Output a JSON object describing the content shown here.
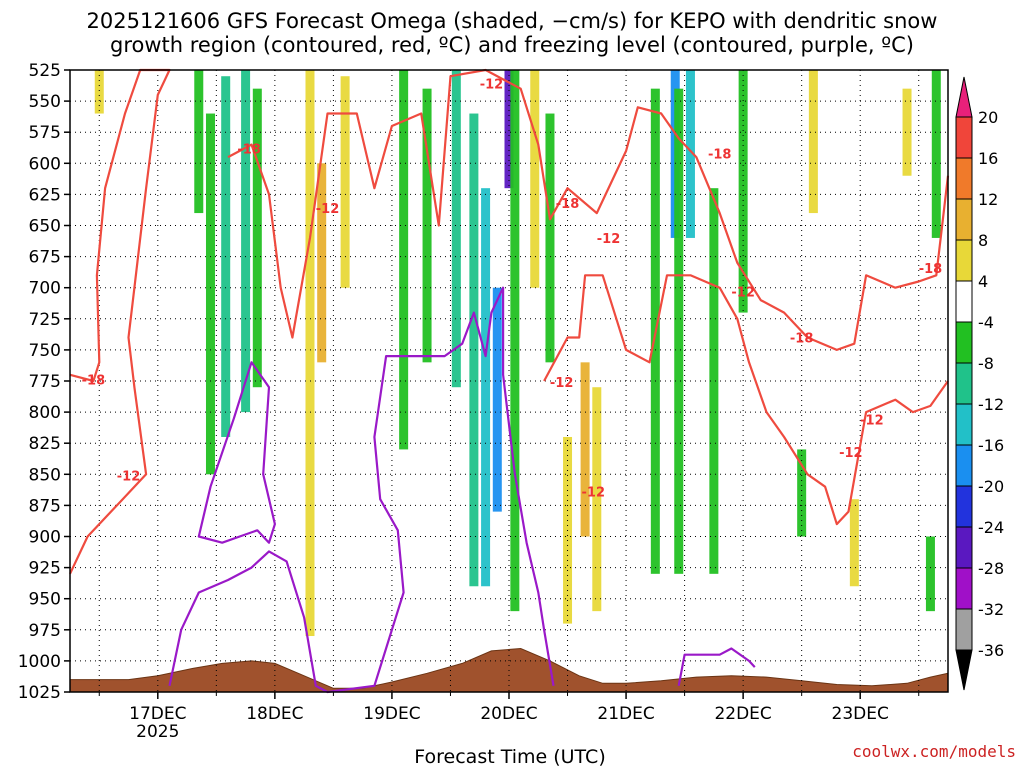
{
  "chart_data": {
    "type": "time-height cross section (shaded + contours)",
    "title_line1": "2025121606 GFS Forecast Omega (shaded, −cm/s) for KEPO with dendritic snow",
    "title_line2": "growth region (contoured, red, ºC) and freezing level (contoured, purple, ºC)",
    "xlabel": "Forecast Time (UTC)",
    "credit": "coolwx.com/models",
    "x_ticks": [
      "17DEC",
      "18DEC",
      "19DEC",
      "20DEC",
      "21DEC",
      "22DEC",
      "23DEC"
    ],
    "x_tick_positions_day": [
      17,
      18,
      19,
      20,
      21,
      22,
      23
    ],
    "x_subtick_year": "2025",
    "xlim_day": [
      16.25,
      23.75
    ],
    "y_ticks": [
      525,
      550,
      575,
      600,
      625,
      650,
      675,
      700,
      725,
      750,
      775,
      800,
      825,
      850,
      875,
      900,
      925,
      950,
      975,
      1000,
      1025
    ],
    "ylim_hpa": [
      525,
      1025
    ],
    "colorbar": {
      "labels": [
        "20",
        "16",
        "12",
        "8",
        "4",
        "-4",
        "-8",
        "-12",
        "-16",
        "-20",
        "-24",
        "-28",
        "-32",
        "-36"
      ],
      "bins": [
        {
          "range": [
            16,
            20
          ],
          "color": "#f0453a"
        },
        {
          "range": [
            12,
            16
          ],
          "color": "#f07a2a"
        },
        {
          "range": [
            8,
            12
          ],
          "color": "#e8b030"
        },
        {
          "range": [
            4,
            8
          ],
          "color": "#e8d838"
        },
        {
          "range": [
            -4,
            4
          ],
          "color": "#ffffff"
        },
        {
          "range": [
            -8,
            -4
          ],
          "color": "#22c022"
        },
        {
          "range": [
            -12,
            -8
          ],
          "color": "#20c28a"
        },
        {
          "range": [
            -16,
            -12
          ],
          "color": "#22c0c8"
        },
        {
          "range": [
            -20,
            -16
          ],
          "color": "#1a8ff0"
        },
        {
          "range": [
            -24,
            -20
          ],
          "color": "#2233dd"
        },
        {
          "range": [
            -28,
            -24
          ],
          "color": "#5a18c0"
        },
        {
          "range": [
            -32,
            -28
          ],
          "color": "#a010c8"
        },
        {
          "range": [
            -36,
            -32
          ],
          "color": "#a0a0a0"
        }
      ],
      "top_arrow_color": "#e8207a",
      "bottom_arrow_color": "#000000"
    },
    "omega_columns": [
      {
        "day": 16.5,
        "top": 525,
        "bottom": 560,
        "value": 5
      },
      {
        "day": 17.35,
        "top": 525,
        "bottom": 640,
        "value": -6
      },
      {
        "day": 17.45,
        "top": 560,
        "bottom": 850,
        "value": -6
      },
      {
        "day": 17.58,
        "top": 530,
        "bottom": 820,
        "value": -9
      },
      {
        "day": 17.75,
        "top": 525,
        "bottom": 800,
        "value": -10
      },
      {
        "day": 17.85,
        "top": 540,
        "bottom": 780,
        "value": -7
      },
      {
        "day": 18.3,
        "top": 525,
        "bottom": 980,
        "value": 6
      },
      {
        "day": 18.4,
        "top": 600,
        "bottom": 760,
        "value": 10
      },
      {
        "day": 18.6,
        "top": 530,
        "bottom": 700,
        "value": 5
      },
      {
        "day": 19.1,
        "top": 525,
        "bottom": 830,
        "value": -7
      },
      {
        "day": 19.3,
        "top": 540,
        "bottom": 760,
        "value": -6
      },
      {
        "day": 19.55,
        "top": 525,
        "bottom": 780,
        "value": -10
      },
      {
        "day": 19.7,
        "top": 560,
        "bottom": 940,
        "value": -10
      },
      {
        "day": 19.8,
        "top": 620,
        "bottom": 940,
        "value": -14
      },
      {
        "day": 19.9,
        "top": 700,
        "bottom": 880,
        "value": -18
      },
      {
        "day": 20.0,
        "top": 525,
        "bottom": 620,
        "value": -26
      },
      {
        "day": 20.05,
        "top": 525,
        "bottom": 960,
        "value": -7
      },
      {
        "day": 20.22,
        "top": 525,
        "bottom": 700,
        "value": 6
      },
      {
        "day": 20.35,
        "top": 560,
        "bottom": 760,
        "value": -8
      },
      {
        "day": 20.5,
        "top": 820,
        "bottom": 970,
        "value": 5
      },
      {
        "day": 20.65,
        "top": 760,
        "bottom": 900,
        "value": 10
      },
      {
        "day": 20.75,
        "top": 780,
        "bottom": 960,
        "value": 6
      },
      {
        "day": 21.25,
        "top": 540,
        "bottom": 930,
        "value": -6
      },
      {
        "day": 21.42,
        "top": 525,
        "bottom": 660,
        "value": -18
      },
      {
        "day": 21.45,
        "top": 540,
        "bottom": 930,
        "value": -8
      },
      {
        "day": 21.55,
        "top": 525,
        "bottom": 660,
        "value": -14
      },
      {
        "day": 21.75,
        "top": 620,
        "bottom": 930,
        "value": -6
      },
      {
        "day": 22.0,
        "top": 525,
        "bottom": 720,
        "value": -6
      },
      {
        "day": 22.5,
        "top": 830,
        "bottom": 900,
        "value": -6
      },
      {
        "day": 22.6,
        "top": 525,
        "bottom": 640,
        "value": 5
      },
      {
        "day": 22.95,
        "top": 870,
        "bottom": 940,
        "value": 5
      },
      {
        "day": 23.4,
        "top": 540,
        "bottom": 610,
        "value": 5
      },
      {
        "day": 23.65,
        "top": 525,
        "bottom": 660,
        "value": -6
      },
      {
        "day": 23.6,
        "top": 900,
        "bottom": 960,
        "value": -6
      }
    ],
    "dgz_contour_minus12": [
      [
        16.25,
        770
      ],
      [
        16.45,
        775
      ],
      [
        16.5,
        760
      ],
      [
        16.48,
        690
      ],
      [
        16.55,
        620
      ],
      [
        16.72,
        560
      ],
      [
        16.85,
        525
      ],
      [
        17.1,
        525
      ],
      [
        17.0,
        545
      ],
      [
        16.9,
        620
      ],
      [
        16.8,
        700
      ],
      [
        16.75,
        740
      ],
      [
        16.8,
        780
      ],
      [
        16.9,
        850
      ],
      [
        16.7,
        870
      ],
      [
        16.4,
        900
      ],
      [
        16.25,
        930
      ]
    ],
    "dgz_contour_minus18": [
      [
        17.6,
        595
      ],
      [
        17.8,
        585
      ],
      [
        17.95,
        625
      ],
      [
        18.05,
        700
      ],
      [
        18.15,
        740
      ],
      [
        18.3,
        660
      ],
      [
        18.45,
        560
      ],
      [
        18.7,
        560
      ],
      [
        18.85,
        620
      ],
      [
        19.0,
        570
      ],
      [
        19.25,
        560
      ],
      [
        19.4,
        650
      ],
      [
        19.5,
        530
      ],
      [
        19.8,
        525
      ],
      [
        20.1,
        540
      ],
      [
        20.25,
        585
      ],
      [
        20.35,
        645
      ],
      [
        20.5,
        620
      ],
      [
        20.75,
        640
      ],
      [
        21.0,
        590
      ],
      [
        21.1,
        555
      ],
      [
        21.3,
        560
      ],
      [
        21.45,
        580
      ],
      [
        21.6,
        595
      ],
      [
        21.8,
        640
      ],
      [
        21.95,
        680
      ],
      [
        22.15,
        710
      ],
      [
        22.35,
        720
      ],
      [
        22.55,
        740
      ],
      [
        22.8,
        750
      ],
      [
        22.95,
        745
      ],
      [
        23.05,
        690
      ],
      [
        23.3,
        700
      ],
      [
        23.5,
        695
      ],
      [
        23.65,
        690
      ],
      [
        23.75,
        610
      ]
    ],
    "dgz_contour_lower_minus12": [
      [
        20.3,
        775
      ],
      [
        20.5,
        740
      ],
      [
        20.6,
        740
      ],
      [
        20.65,
        690
      ],
      [
        20.8,
        690
      ],
      [
        21.0,
        750
      ],
      [
        21.2,
        760
      ],
      [
        21.35,
        690
      ],
      [
        21.55,
        690
      ],
      [
        21.8,
        700
      ],
      [
        21.95,
        725
      ],
      [
        22.05,
        760
      ],
      [
        22.2,
        800
      ],
      [
        22.35,
        820
      ],
      [
        22.55,
        850
      ],
      [
        22.7,
        860
      ],
      [
        22.8,
        890
      ],
      [
        22.9,
        880
      ],
      [
        23.05,
        800
      ],
      [
        23.3,
        790
      ],
      [
        23.45,
        800
      ],
      [
        23.6,
        795
      ],
      [
        23.75,
        775
      ]
    ],
    "dgz_contour_labels": [
      {
        "text": "-18",
        "day": 16.45,
        "hpa": 778
      },
      {
        "text": "-12",
        "day": 16.75,
        "hpa": 855
      },
      {
        "text": "-18",
        "day": 17.78,
        "hpa": 592
      },
      {
        "text": "-12",
        "day": 18.45,
        "hpa": 640
      },
      {
        "text": "-12",
        "day": 19.85,
        "hpa": 540
      },
      {
        "text": "-18",
        "day": 20.5,
        "hpa": 636
      },
      {
        "text": "-12",
        "day": 20.85,
        "hpa": 664
      },
      {
        "text": "-12",
        "day": 20.45,
        "hpa": 780
      },
      {
        "text": "-12",
        "day": 20.72,
        "hpa": 868
      },
      {
        "text": "-18",
        "day": 21.8,
        "hpa": 596
      },
      {
        "text": "-12",
        "day": 22.0,
        "hpa": 707
      },
      {
        "text": "-18",
        "day": 22.5,
        "hpa": 744
      },
      {
        "text": "-12",
        "day": 22.92,
        "hpa": 836
      },
      {
        "text": "-12",
        "day": 23.1,
        "hpa": 810
      },
      {
        "text": "-18",
        "day": 23.6,
        "hpa": 688
      }
    ],
    "freezing_level_contour": [
      [
        17.1,
        1020
      ],
      [
        17.2,
        975
      ],
      [
        17.35,
        945
      ],
      [
        17.6,
        935
      ],
      [
        17.8,
        925
      ],
      [
        17.95,
        912
      ],
      [
        18.1,
        920
      ],
      [
        18.25,
        965
      ],
      [
        18.35,
        1020
      ],
      [
        18.45,
        1025
      ],
      [
        18.85,
        1020
      ],
      [
        19.0,
        975
      ],
      [
        19.1,
        945
      ],
      [
        19.05,
        895
      ],
      [
        18.9,
        870
      ],
      [
        18.85,
        820
      ],
      [
        18.95,
        755
      ],
      [
        19.2,
        755
      ],
      [
        19.35,
        755
      ],
      [
        19.45,
        755
      ],
      [
        19.6,
        745
      ],
      [
        19.7,
        720
      ],
      [
        19.8,
        755
      ],
      [
        19.85,
        720
      ],
      [
        19.95,
        700
      ],
      [
        19.95,
        770
      ],
      [
        20.05,
        850
      ],
      [
        20.15,
        905
      ],
      [
        20.25,
        945
      ],
      [
        20.3,
        975
      ],
      [
        20.38,
        1020
      ]
    ],
    "freezing_level_loop": [
      [
        17.35,
        900
      ],
      [
        17.45,
        860
      ],
      [
        17.65,
        805
      ],
      [
        17.8,
        760
      ],
      [
        17.95,
        780
      ],
      [
        17.9,
        850
      ],
      [
        18.0,
        890
      ],
      [
        17.95,
        905
      ],
      [
        17.85,
        895
      ],
      [
        17.7,
        900
      ],
      [
        17.55,
        905
      ],
      [
        17.35,
        900
      ]
    ],
    "freezing_level_right": [
      [
        21.45,
        1020
      ],
      [
        21.5,
        995
      ],
      [
        21.8,
        995
      ],
      [
        21.9,
        990
      ],
      [
        22.05,
        1000
      ],
      [
        22.1,
        1005
      ]
    ],
    "terrain_top_hpa": [
      [
        16.25,
        1015
      ],
      [
        16.75,
        1015
      ],
      [
        17.0,
        1012
      ],
      [
        17.3,
        1006
      ],
      [
        17.55,
        1002
      ],
      [
        17.8,
        1000
      ],
      [
        18.0,
        1002
      ],
      [
        18.2,
        1010
      ],
      [
        18.5,
        1022
      ],
      [
        18.75,
        1022
      ],
      [
        19.0,
        1017
      ],
      [
        19.3,
        1010
      ],
      [
        19.6,
        1002
      ],
      [
        19.85,
        992
      ],
      [
        20.1,
        990
      ],
      [
        20.35,
        1000
      ],
      [
        20.6,
        1012
      ],
      [
        20.8,
        1018
      ],
      [
        21.0,
        1018
      ],
      [
        21.3,
        1016
      ],
      [
        21.6,
        1013
      ],
      [
        21.9,
        1012
      ],
      [
        22.2,
        1013
      ],
      [
        22.5,
        1016
      ],
      [
        22.8,
        1019
      ],
      [
        23.1,
        1020
      ],
      [
        23.4,
        1018
      ],
      [
        23.6,
        1013
      ],
      [
        23.75,
        1010
      ]
    ]
  }
}
